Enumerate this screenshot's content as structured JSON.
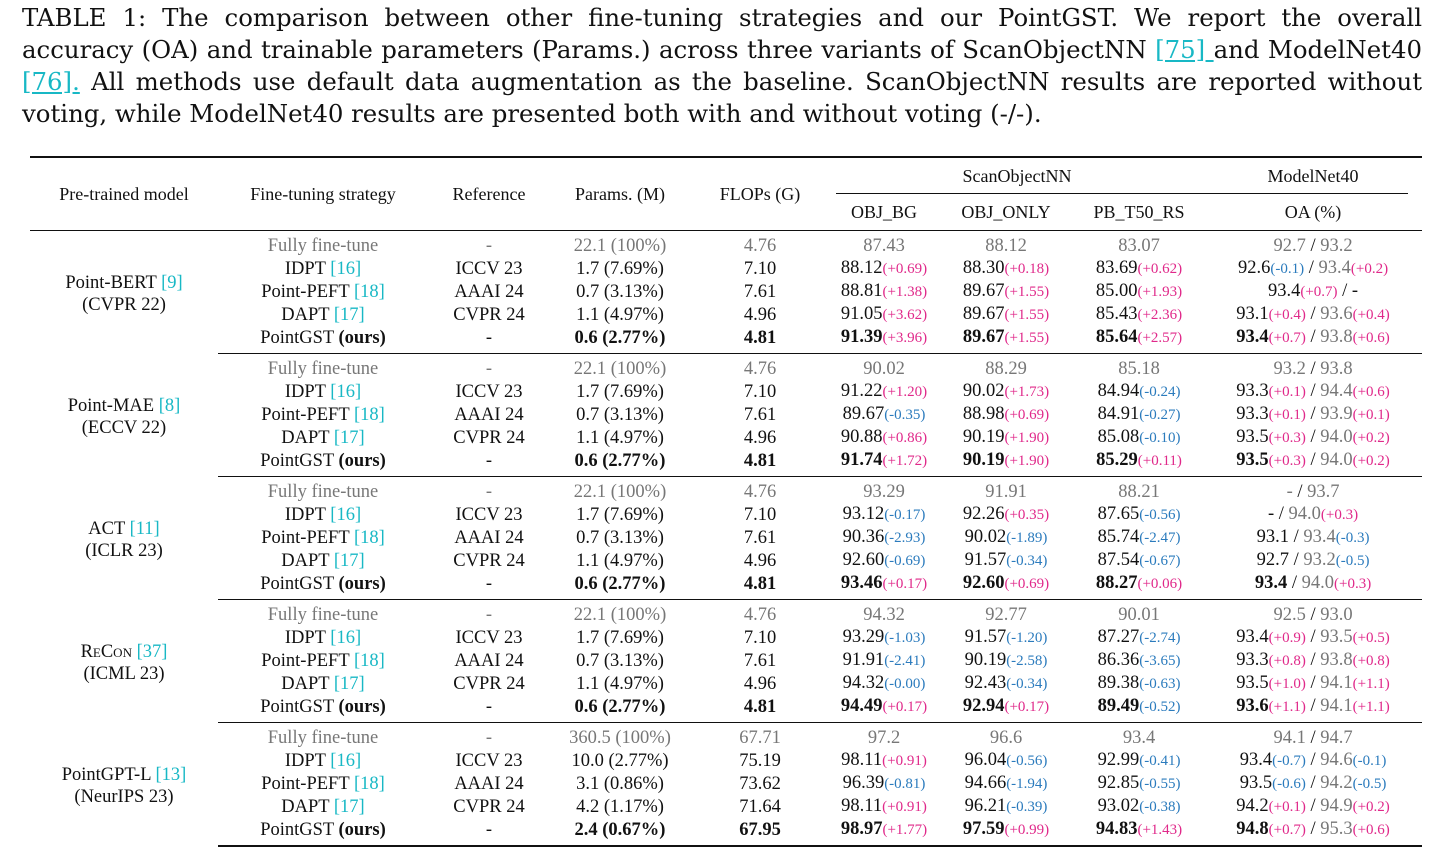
{
  "caption": {
    "part1": "TABLE 1: The comparison between other fine-tuning strategies and our PointGST. We report the overall accuracy (OA) and trainable parameters (Params.) across three variants of ScanObjectNN ",
    "ref1": "[75] ",
    "part2": "and ModelNet40 ",
    "ref2": "[76].",
    "part3": " All methods use default data augmentation as the baseline. ScanObjectNN results are reported without voting, while ModelNet40 results are presented both with and without voting (-/-)."
  },
  "headers": {
    "pretrained": "Pre-trained model",
    "strategy": "Fine-tuning strategy",
    "reference": "Reference",
    "params": "Params. (M)",
    "flops": "FLOPs (G)",
    "scan": "ScanObjectNN",
    "modelnet": "ModelNet40",
    "obj_bg": "OBJ_BG",
    "obj_only": "OBJ_ONLY",
    "pb": "PB_T50_RS",
    "oa": "OA (%)"
  },
  "common": {
    "full": "Fully fine-tune",
    "idpt": "IDPT ",
    "idpt_cite": "[16]",
    "peft": "Point-PEFT ",
    "peft_cite": "[18]",
    "dapt": "DAPT ",
    "dapt_cite": "[17]",
    "gst": "PointGST ",
    "ours": "(ours)",
    "dash": "-",
    "iccv": "ICCV 23",
    "aaai": "AAAI 24",
    "cvpr": "CVPR 24",
    "sep": " / "
  },
  "blocks": [
    {
      "model": "Point-BERT ",
      "cite": "[9]",
      "venue": "(CVPR 22)",
      "rows": [
        {
          "params": "22.1 (100%)",
          "flops": "4.76",
          "bg": "87.43",
          "bgd": "",
          "on": "88.12",
          "ond": "",
          "pb": "83.07",
          "pbd": "",
          "m1": "92.7",
          "m1d": "",
          "m2": "93.2",
          "m2d": ""
        },
        {
          "params": "1.7 (7.69%)",
          "flops": "7.10",
          "bg": "88.12",
          "bgd": "(+0.69)",
          "on": "88.30",
          "ond": "(+0.18)",
          "pb": "83.69",
          "pbd": "(+0.62)",
          "m1": "92.6",
          "m1d": "(-0.1)",
          "m2": "93.4",
          "m2d": "(+0.2)"
        },
        {
          "params": "0.7 (3.13%)",
          "flops": "7.61",
          "bg": "88.81",
          "bgd": "(+1.38)",
          "on": "89.67",
          "ond": "(+1.55)",
          "pb": "85.00",
          "pbd": "(+1.93)",
          "m1": "93.4",
          "m1d": "(+0.7)",
          "m2": "-",
          "m2d": ""
        },
        {
          "params": "1.1 (4.97%)",
          "flops": "4.96",
          "bg": "91.05",
          "bgd": "(+3.62)",
          "on": "89.67",
          "ond": "(+1.55)",
          "pb": "85.43",
          "pbd": "(+2.36)",
          "m1": "93.1",
          "m1d": "(+0.4)",
          "m2": "93.6",
          "m2d": "(+0.4)"
        },
        {
          "params": "0.6 (2.77%)",
          "flops": "4.81",
          "bg": "91.39",
          "bgd": "(+3.96)",
          "on": "89.67",
          "ond": "(+1.55)",
          "pb": "85.64",
          "pbd": "(+2.57)",
          "m1": "93.4",
          "m1d": "(+0.7)",
          "m2": "93.8",
          "m2d": "(+0.6)"
        }
      ]
    },
    {
      "model": "Point-MAE ",
      "cite": "[8]",
      "venue": "(ECCV 22)",
      "rows": [
        {
          "params": "22.1 (100%)",
          "flops": "4.76",
          "bg": "90.02",
          "bgd": "",
          "on": "88.29",
          "ond": "",
          "pb": "85.18",
          "pbd": "",
          "m1": "93.2",
          "m1d": "",
          "m2": "93.8",
          "m2d": ""
        },
        {
          "params": "1.7 (7.69%)",
          "flops": "7.10",
          "bg": "91.22",
          "bgd": "(+1.20)",
          "on": "90.02",
          "ond": "(+1.73)",
          "pb": "84.94",
          "pbd": "(-0.24)",
          "m1": "93.3",
          "m1d": "(+0.1)",
          "m2": "94.4",
          "m2d": "(+0.6)"
        },
        {
          "params": "0.7 (3.13%)",
          "flops": "7.61",
          "bg": "89.67",
          "bgd": "(-0.35)",
          "on": "88.98",
          "ond": "(+0.69)",
          "pb": "84.91",
          "pbd": "(-0.27)",
          "m1": "93.3",
          "m1d": "(+0.1)",
          "m2": "93.9",
          "m2d": "(+0.1)"
        },
        {
          "params": "1.1 (4.97%)",
          "flops": "4.96",
          "bg": "90.88",
          "bgd": "(+0.86)",
          "on": "90.19",
          "ond": "(+1.90)",
          "pb": "85.08",
          "pbd": "(-0.10)",
          "m1": "93.5",
          "m1d": "(+0.3)",
          "m2": "94.0",
          "m2d": "(+0.2)"
        },
        {
          "params": "0.6 (2.77%)",
          "flops": "4.81",
          "bg": "91.74",
          "bgd": "(+1.72)",
          "on": "90.19",
          "ond": "(+1.90)",
          "pb": "85.29",
          "pbd": "(+0.11)",
          "m1": "93.5",
          "m1d": "(+0.3)",
          "m2": "94.0",
          "m2d": "(+0.2)"
        }
      ]
    },
    {
      "model": "ACT ",
      "cite": "[11]",
      "venue": "(ICLR 23)",
      "rows": [
        {
          "params": "22.1 (100%)",
          "flops": "4.76",
          "bg": "93.29",
          "bgd": "",
          "on": "91.91",
          "ond": "",
          "pb": "88.21",
          "pbd": "",
          "m1": "-",
          "m1d": "",
          "m2": "93.7",
          "m2d": ""
        },
        {
          "params": "1.7 (7.69%)",
          "flops": "7.10",
          "bg": "93.12",
          "bgd": "(-0.17)",
          "on": "92.26",
          "ond": "(+0.35)",
          "pb": "87.65",
          "pbd": "(-0.56)",
          "m1": "-",
          "m1d": "",
          "m2": "94.0",
          "m2d": "(+0.3)"
        },
        {
          "params": "0.7 (3.13%)",
          "flops": "7.61",
          "bg": "90.36",
          "bgd": "(-2.93)",
          "on": "90.02",
          "ond": "(-1.89)",
          "pb": "85.74",
          "pbd": "(-2.47)",
          "m1": "93.1",
          "m1d": "",
          "m2": "93.4",
          "m2d": "(-0.3)"
        },
        {
          "params": "1.1 (4.97%)",
          "flops": "4.96",
          "bg": "92.60",
          "bgd": "(-0.69)",
          "on": "91.57",
          "ond": "(-0.34)",
          "pb": "87.54",
          "pbd": "(-0.67)",
          "m1": "92.7",
          "m1d": "",
          "m2": "93.2",
          "m2d": "(-0.5)"
        },
        {
          "params": "0.6 (2.77%)",
          "flops": "4.81",
          "bg": "93.46",
          "bgd": "(+0.17)",
          "on": "92.60",
          "ond": "(+0.69)",
          "pb": "88.27",
          "pbd": "(+0.06)",
          "m1": "93.4",
          "m1d": "",
          "m2": "94.0",
          "m2d": "(+0.3)"
        }
      ]
    },
    {
      "model": "ReCon ",
      "cite": "[37]",
      "venue": "(ICML 23)",
      "rows": [
        {
          "params": "22.1 (100%)",
          "flops": "4.76",
          "bg": "94.32",
          "bgd": "",
          "on": "92.77",
          "ond": "",
          "pb": "90.01",
          "pbd": "",
          "m1": "92.5",
          "m1d": "",
          "m2": "93.0",
          "m2d": ""
        },
        {
          "params": "1.7 (7.69%)",
          "flops": "7.10",
          "bg": "93.29",
          "bgd": "(-1.03)",
          "on": "91.57",
          "ond": "(-1.20)",
          "pb": "87.27",
          "pbd": "(-2.74)",
          "m1": "93.4",
          "m1d": "(+0.9)",
          "m2": "93.5",
          "m2d": "(+0.5)"
        },
        {
          "params": "0.7 (3.13%)",
          "flops": "7.61",
          "bg": "91.91",
          "bgd": "(-2.41)",
          "on": "90.19",
          "ond": "(-2.58)",
          "pb": "86.36",
          "pbd": "(-3.65)",
          "m1": "93.3",
          "m1d": "(+0.8)",
          "m2": "93.8",
          "m2d": "(+0.8)"
        },
        {
          "params": "1.1 (4.97%)",
          "flops": "4.96",
          "bg": "94.32",
          "bgd": "(-0.00)",
          "on": "92.43",
          "ond": "(-0.34)",
          "pb": "89.38",
          "pbd": "(-0.63)",
          "m1": "93.5",
          "m1d": "(+1.0)",
          "m2": "94.1",
          "m2d": "(+1.1)"
        },
        {
          "params": "0.6 (2.77%)",
          "flops": "4.81",
          "bg": "94.49",
          "bgd": "(+0.17)",
          "on": "92.94",
          "ond": "(+0.17)",
          "pb": "89.49",
          "pbd": "(-0.52)",
          "m1": "93.6",
          "m1d": "(+1.1)",
          "m2": "94.1",
          "m2d": "(+1.1)"
        }
      ]
    },
    {
      "model": "PointGPT-L ",
      "cite": "[13]",
      "venue": "(NeurIPS 23)",
      "rows": [
        {
          "params": "360.5 (100%)",
          "flops": "67.71",
          "bg": "97.2",
          "bgd": "",
          "on": "96.6",
          "ond": "",
          "pb": "93.4",
          "pbd": "",
          "m1": "94.1",
          "m1d": "",
          "m2": "94.7",
          "m2d": ""
        },
        {
          "params": "10.0 (2.77%)",
          "flops": "75.19",
          "bg": "98.11",
          "bgd": "(+0.91)",
          "on": "96.04",
          "ond": "(-0.56)",
          "pb": "92.99",
          "pbd": "(-0.41)",
          "m1": "93.4",
          "m1d": "(-0.7)",
          "m2": "94.6",
          "m2d": "(-0.1)"
        },
        {
          "params": "3.1 (0.86%)",
          "flops": "73.62",
          "bg": "96.39",
          "bgd": "(-0.81)",
          "on": "94.66",
          "ond": "(-1.94)",
          "pb": "92.85",
          "pbd": "(-0.55)",
          "m1": "93.5",
          "m1d": "(-0.6)",
          "m2": "94.2",
          "m2d": "(-0.5)"
        },
        {
          "params": "4.2 (1.17%)",
          "flops": "71.64",
          "bg": "98.11",
          "bgd": "(+0.91)",
          "on": "96.21",
          "ond": "(-0.39)",
          "pb": "93.02",
          "pbd": "(-0.38)",
          "m1": "94.2",
          "m1d": "(+0.1)",
          "m2": "94.9",
          "m2d": "(+0.2)"
        },
        {
          "params": "2.4 (0.67%)",
          "flops": "67.95",
          "bg": "98.97",
          "bgd": "(+1.77)",
          "on": "97.59",
          "ond": "(+0.99)",
          "pb": "94.83",
          "pbd": "(+1.43)",
          "m1": "94.8",
          "m1d": "(+0.7)",
          "m2": "95.3",
          "m2d": "(+0.6)"
        }
      ]
    }
  ]
}
